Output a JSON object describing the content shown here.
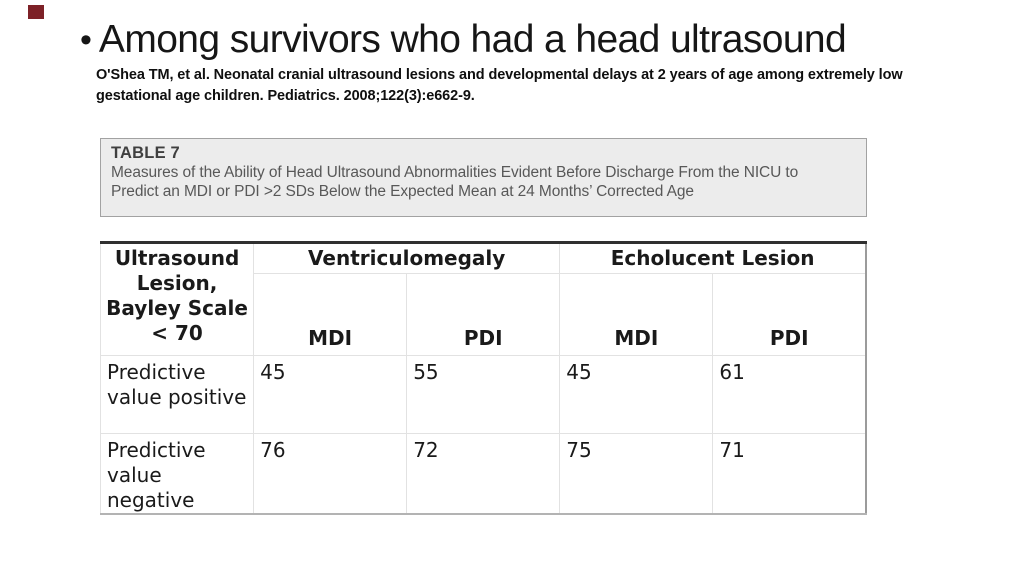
{
  "slide": {
    "background": "#ffffff",
    "corner_square_color": "#7d2127"
  },
  "title": {
    "bullet": "•",
    "text": "Among survivors who had a head ultrasound"
  },
  "citation": {
    "line1": "O'Shea TM, et al. Neonatal cranial ultrasound lesions and developmental delays at 2 years of age among extremely low",
    "line2": "gestational age children. Pediatrics. 2008;122(3):e662-9."
  },
  "caption_box": {
    "label": "TABLE 7",
    "line1": "Measures of the Ability of Head Ultrasound Abnormalities Evident Before Discharge From the NICU to",
    "line2": "Predict an MDI or PDI >2 SDs Below the Expected Mean at 24 Months’ Corrected Age",
    "background": "#ececec",
    "border_color": "#a2a2a2"
  },
  "chart_data": {
    "type": "table",
    "corner_header": "Ultrasound Lesion, Bayley Scale < 70",
    "column_groups": [
      {
        "label": "Ventriculomegaly",
        "columns": [
          "MDI",
          "PDI"
        ]
      },
      {
        "label": "Echolucent Lesion",
        "columns": [
          "MDI",
          "PDI"
        ]
      }
    ],
    "rows": [
      {
        "label": "Predictive value positive",
        "values": [
          "45",
          "55",
          "45",
          "61"
        ]
      },
      {
        "label": "Predictive value negative",
        "values": [
          "76",
          "72",
          "75",
          "71"
        ]
      }
    ]
  }
}
